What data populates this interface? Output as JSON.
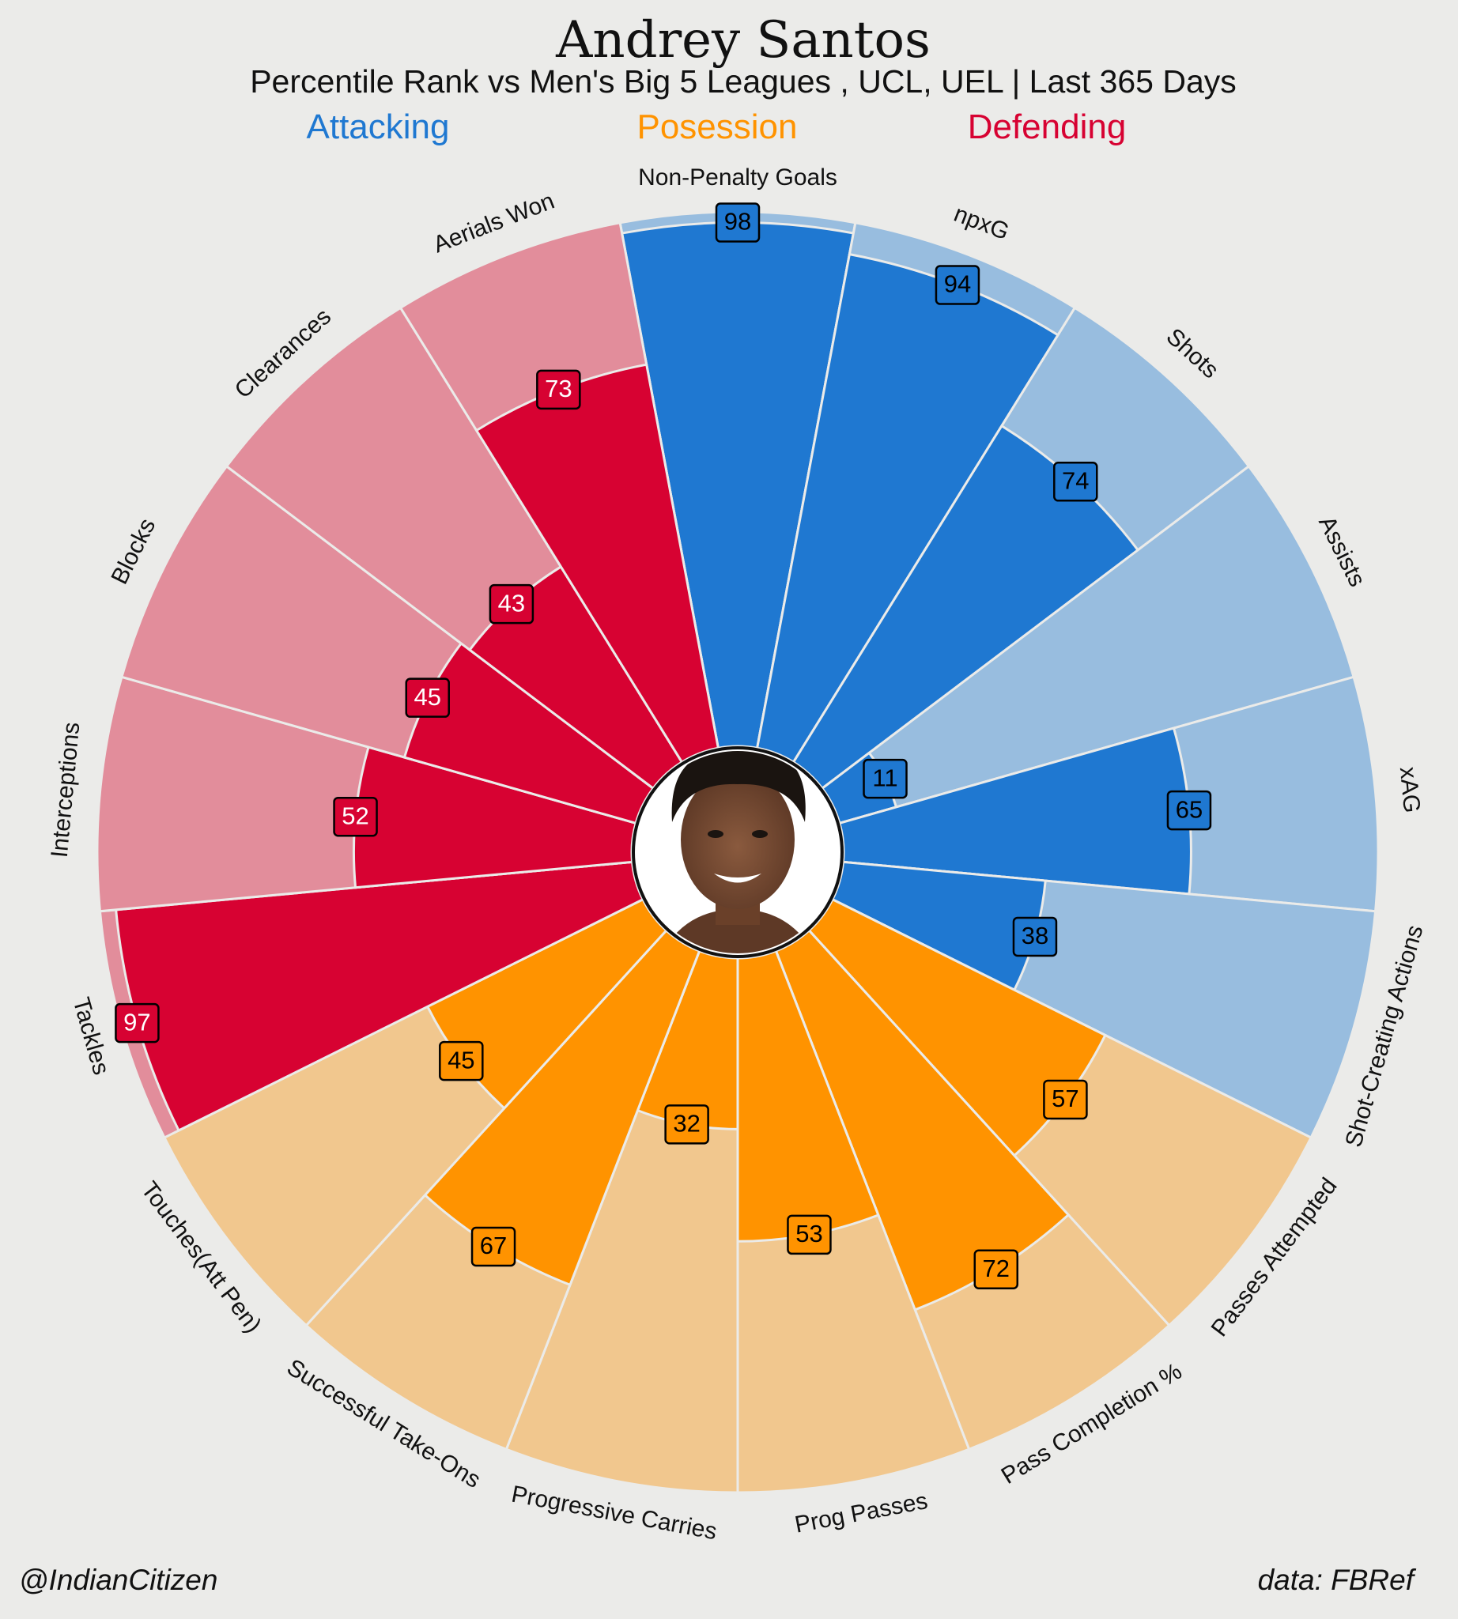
{
  "title": "Andrey Santos",
  "subtitle": "Percentile Rank vs Men's Big 5 Leagues , UCL, UEL | Last 365 Days",
  "categories": {
    "attacking": {
      "label": "Attacking",
      "color": "#1f78d1"
    },
    "possession": {
      "label": "Posession",
      "color": "#ff9300"
    },
    "defending": {
      "label": "Defending",
      "color": "#d70232"
    }
  },
  "footer": {
    "credit": "@IndianCitizen",
    "source": "data: FBRef"
  },
  "center_image": "player-photo",
  "chart_data": {
    "type": "pizza",
    "max": 100,
    "slices": [
      {
        "metric": "Non-Penalty Goals",
        "value": 98,
        "group": "attacking"
      },
      {
        "metric": "npxG",
        "value": 94,
        "group": "attacking"
      },
      {
        "metric": "Shots",
        "value": 74,
        "group": "attacking"
      },
      {
        "metric": "Assists",
        "value": 11,
        "group": "attacking"
      },
      {
        "metric": "xAG",
        "value": 65,
        "group": "attacking"
      },
      {
        "metric": "Shot-Creating Actions",
        "value": 38,
        "group": "attacking"
      },
      {
        "metric": "Passes Attempted",
        "value": 57,
        "group": "possession"
      },
      {
        "metric": "Pass Completion %",
        "value": 72,
        "group": "possession"
      },
      {
        "metric": "Prog Passes",
        "value": 53,
        "group": "possession"
      },
      {
        "metric": "Progressive Carries",
        "value": 32,
        "group": "possession"
      },
      {
        "metric": "Successful Take-Ons",
        "value": 67,
        "group": "possession"
      },
      {
        "metric": "Touches(Att Pen)",
        "value": 45,
        "group": "possession"
      },
      {
        "metric": "Tackles",
        "value": 97,
        "group": "defending"
      },
      {
        "metric": "Interceptions",
        "value": 52,
        "group": "defending"
      },
      {
        "metric": "Blocks",
        "value": 45,
        "group": "defending"
      },
      {
        "metric": "Clearances",
        "value": 43,
        "group": "defending"
      },
      {
        "metric": "Aerials Won",
        "value": 73,
        "group": "defending"
      }
    ],
    "colors": {
      "attacking": {
        "fill": "#1f78d1",
        "bg": "#98bddf",
        "box": "#1f78d1",
        "text": "#000000"
      },
      "possession": {
        "fill": "#ff9300",
        "bg": "#f1c78e",
        "box": "#ff9300",
        "text": "#000000"
      },
      "defending": {
        "fill": "#d70232",
        "bg": "#e28d9b",
        "box": "#d70232",
        "text": "#ffffff"
      }
    }
  }
}
